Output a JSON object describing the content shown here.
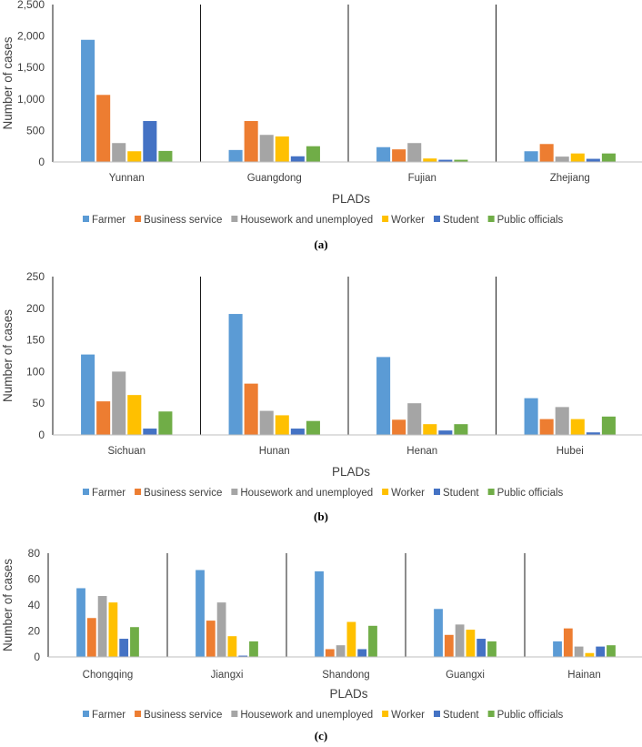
{
  "chart_data": [
    {
      "type": "bar",
      "panel_label": "(a)",
      "categories": [
        "Yunnan",
        "Guangdong",
        "Fujian",
        "Zhejiang"
      ],
      "series": [
        {
          "name": "Farmer",
          "color": "#5B9BD5",
          "values": [
            1940,
            190,
            235,
            170
          ]
        },
        {
          "name": "Business service",
          "color": "#ED7D31",
          "values": [
            1065,
            650,
            200,
            285
          ]
        },
        {
          "name": "Housework and unemployed",
          "color": "#A5A5A5",
          "values": [
            300,
            430,
            300,
            85
          ]
        },
        {
          "name": "Worker",
          "color": "#FFC000",
          "values": [
            170,
            405,
            55,
            135
          ]
        },
        {
          "name": "Student",
          "color": "#4472C4",
          "values": [
            650,
            90,
            35,
            50
          ]
        },
        {
          "name": "Public officials",
          "color": "#70AD47",
          "values": [
            175,
            250,
            35,
            135
          ]
        }
      ],
      "ylim": [
        0,
        2500
      ],
      "yticks": [
        0,
        500,
        1000,
        1500,
        2000,
        2500
      ],
      "ytick_labels": [
        "0",
        "500",
        "1,000",
        "1,500",
        "2,000",
        "2,500"
      ],
      "xlabel": "PLADs",
      "ylabel": "Number of cases"
    },
    {
      "type": "bar",
      "panel_label": "(b)",
      "categories": [
        "Sichuan",
        "Hunan",
        "Henan",
        "Hubei"
      ],
      "series": [
        {
          "name": "Farmer",
          "color": "#5B9BD5",
          "values": [
            127,
            191,
            123,
            58
          ]
        },
        {
          "name": "Business service",
          "color": "#ED7D31",
          "values": [
            53,
            81,
            24,
            25
          ]
        },
        {
          "name": "Housework and unemployed",
          "color": "#A5A5A5",
          "values": [
            100,
            38,
            50,
            44
          ]
        },
        {
          "name": "Worker",
          "color": "#FFC000",
          "values": [
            63,
            31,
            17,
            25
          ]
        },
        {
          "name": "Student",
          "color": "#4472C4",
          "values": [
            10,
            10,
            7,
            4
          ]
        },
        {
          "name": "Public officials",
          "color": "#70AD47",
          "values": [
            37,
            22,
            17,
            29
          ]
        }
      ],
      "ylim": [
        0,
        250
      ],
      "yticks": [
        0,
        50,
        100,
        150,
        200,
        250
      ],
      "ytick_labels": [
        "0",
        "50",
        "100",
        "150",
        "200",
        "250"
      ],
      "xlabel": "PLADs",
      "ylabel": "Number of cases"
    },
    {
      "type": "bar",
      "panel_label": "(c)",
      "categories": [
        "Chongqing",
        "Jiangxi",
        "Shandong",
        "Guangxi",
        "Hainan"
      ],
      "series": [
        {
          "name": "Farmer",
          "color": "#5B9BD5",
          "values": [
            53,
            67,
            66,
            37,
            12
          ]
        },
        {
          "name": "Business service",
          "color": "#ED7D31",
          "values": [
            30,
            28,
            6,
            17,
            22
          ]
        },
        {
          "name": "Housework and unemployed",
          "color": "#A5A5A5",
          "values": [
            47,
            42,
            9,
            25,
            8
          ]
        },
        {
          "name": "Worker",
          "color": "#FFC000",
          "values": [
            42,
            16,
            27,
            21,
            3
          ]
        },
        {
          "name": "Student",
          "color": "#4472C4",
          "values": [
            14,
            1,
            6,
            14,
            8
          ]
        },
        {
          "name": "Public officials",
          "color": "#70AD47",
          "values": [
            23,
            12,
            24,
            12,
            9
          ]
        }
      ],
      "ylim": [
        0,
        80
      ],
      "yticks": [
        0,
        20,
        40,
        60,
        80
      ],
      "ytick_labels": [
        "0",
        "20",
        "40",
        "60",
        "80"
      ],
      "xlabel": "PLADs",
      "ylabel": "Number of cases"
    }
  ]
}
